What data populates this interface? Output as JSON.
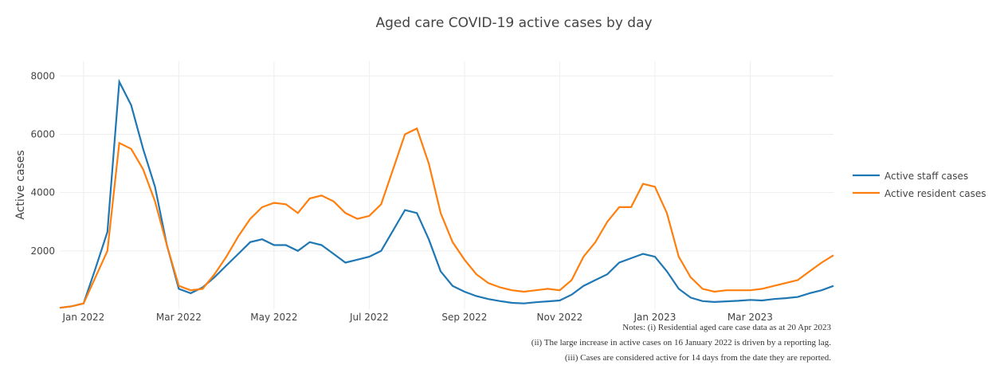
{
  "chart_data": {
    "type": "line",
    "title": "Aged care COVID-19 active cases by day",
    "y_label": "Active cases",
    "categories": [
      null,
      null,
      "Jan 2022",
      null,
      null,
      null,
      null,
      null,
      null,
      null,
      "Mar 2022",
      null,
      null,
      null,
      null,
      null,
      null,
      null,
      "May 2022",
      null,
      null,
      null,
      null,
      null,
      null,
      null,
      "Jul 2022",
      null,
      null,
      null,
      null,
      null,
      null,
      null,
      "Sep 2022",
      null,
      null,
      null,
      null,
      null,
      null,
      null,
      "Nov 2022",
      null,
      null,
      null,
      null,
      null,
      null,
      null,
      "Jan 2023",
      null,
      null,
      null,
      null,
      null,
      null,
      null,
      "Mar 2023",
      null,
      null,
      null,
      null,
      null,
      null,
      null
    ],
    "series": [
      {
        "name": "Active staff cases",
        "color": "#1f77b4",
        "values": [
          50,
          100,
          200,
          1400,
          2650,
          7800,
          7000,
          5500,
          4200,
          2200,
          700,
          550,
          750,
          1100,
          1500,
          1900,
          2300,
          2400,
          2200,
          2200,
          2000,
          2300,
          2200,
          1900,
          1600,
          1700,
          1800,
          2000,
          2700,
          3400,
          3300,
          2400,
          1300,
          800,
          600,
          450,
          350,
          280,
          220,
          200,
          240,
          270,
          300,
          500,
          800,
          1000,
          1200,
          1600,
          1750,
          1900,
          1800,
          1300,
          700,
          400,
          280,
          250,
          270,
          290,
          320,
          300,
          350,
          380,
          420,
          550,
          650,
          800
        ]
      },
      {
        "name": "Active resident cases",
        "color": "#ff7f0e",
        "values": [
          50,
          100,
          200,
          1100,
          2000,
          5700,
          5500,
          4800,
          3700,
          2200,
          800,
          650,
          700,
          1200,
          1800,
          2500,
          3100,
          3500,
          3650,
          3600,
          3300,
          3800,
          3900,
          3700,
          3300,
          3100,
          3200,
          3600,
          4800,
          6000,
          6200,
          5000,
          3300,
          2300,
          1700,
          1200,
          900,
          750,
          650,
          600,
          650,
          700,
          650,
          1000,
          1800,
          2300,
          3000,
          3500,
          3500,
          4300,
          4200,
          3300,
          1800,
          1100,
          700,
          600,
          650,
          650,
          650,
          700,
          800,
          900,
          1000,
          1300,
          1600,
          1850
        ]
      }
    ],
    "ylim": [
      0,
      8500
    ],
    "yticks": [
      2000,
      4000,
      6000,
      8000
    ],
    "grid": true,
    "legend": "right",
    "notes": [
      "Notes: (i) Residential aged care case data as at 20 Apr 2023",
      "(ii) The large increase in active cases on 16 January 2022 is driven by a reporting lag.",
      "(iii) Cases are considered active for 14 days from the date they are reported."
    ]
  }
}
